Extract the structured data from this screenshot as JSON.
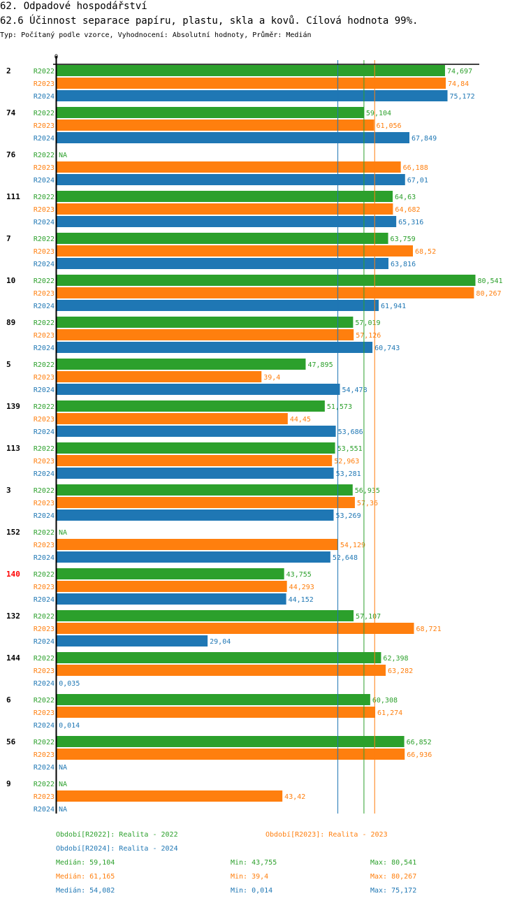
{
  "header": {
    "title": "62. Odpadové hospodářství",
    "subtitle": "62.6 Účinnost separace papíru, plastu, skla a kovů. Cílová hodnota 99%.",
    "meta": "Typ: Počítaný podle vzorce, Vyhodnocení: Absolutní hodnoty, Průměr: Medián"
  },
  "colors": {
    "R2022": "#2ca02c",
    "R2023": "#ff7f0e",
    "R2024": "#1f77b4",
    "highlight": "#ff0000",
    "axis": "#000000"
  },
  "chart_data": {
    "type": "bar",
    "orientation": "horizontal",
    "title": "62.6 Účinnost separace papíru, plastu, skla a kovů. Cílová hodnota 99%.",
    "xlabel": "",
    "ylabel": "",
    "xlim": [
      0,
      81
    ],
    "x_tick_labels": [
      "0"
    ],
    "grid": false,
    "series_names": [
      "R2022",
      "R2023",
      "R2024"
    ],
    "na_label": "NA",
    "categories": [
      "2",
      "74",
      "76",
      "111",
      "7",
      "10",
      "89",
      "5",
      "139",
      "113",
      "3",
      "152",
      "140",
      "132",
      "144",
      "6",
      "56",
      "9"
    ],
    "highlighted_category": "140",
    "series": [
      {
        "name": "R2022",
        "values": [
          74.697,
          59.104,
          null,
          64.63,
          63.759,
          80.541,
          57.019,
          47.895,
          51.573,
          53.551,
          56.935,
          null,
          43.755,
          57.107,
          62.398,
          60.308,
          66.852,
          null
        ],
        "labels": [
          "74,697",
          "59,104",
          "NA",
          "64,63",
          "63,759",
          "80,541",
          "57,019",
          "47,895",
          "51,573",
          "53,551",
          "56,935",
          "NA",
          "43,755",
          "57,107",
          "62,398",
          "60,308",
          "66,852",
          "NA"
        ]
      },
      {
        "name": "R2023",
        "values": [
          74.84,
          61.056,
          66.188,
          64.682,
          68.52,
          80.267,
          57.126,
          39.4,
          44.45,
          52.963,
          57.36,
          54.129,
          44.293,
          68.721,
          63.282,
          61.274,
          66.936,
          43.42
        ],
        "labels": [
          "74,84",
          "61,056",
          "66,188",
          "64,682",
          "68,52",
          "80,267",
          "57,126",
          "39,4",
          "44,45",
          "52,963",
          "57,36",
          "54,129",
          "44,293",
          "68,721",
          "63,282",
          "61,274",
          "66,936",
          "43,42"
        ]
      },
      {
        "name": "R2024",
        "values": [
          75.172,
          67.849,
          67.01,
          65.316,
          63.816,
          61.941,
          60.743,
          54.478,
          53.686,
          53.281,
          53.269,
          52.648,
          44.152,
          29.04,
          0.035,
          0.014,
          null,
          null
        ],
        "labels": [
          "75,172",
          "67,849",
          "67,01",
          "65,316",
          "63,816",
          "61,941",
          "60,743",
          "54,478",
          "53,686",
          "53,281",
          "53,269",
          "52,648",
          "44,152",
          "29,04",
          "0,035",
          "0,014",
          "NA",
          "NA"
        ]
      }
    ],
    "reference_lines": [
      {
        "series": "R2024",
        "type": "median",
        "value": 54.082
      },
      {
        "series": "R2022",
        "type": "median",
        "value": 59.104
      },
      {
        "series": "R2023",
        "type": "median",
        "value": 61.165
      }
    ]
  },
  "legend": {
    "periods": [
      {
        "series": "R2022",
        "text": "Období[R2022]: Realita - 2022"
      },
      {
        "series": "R2023",
        "text": "Období[R2023]: Realita - 2023"
      },
      {
        "series": "R2024",
        "text": "Období[R2024]: Realita - 2024"
      }
    ],
    "stats": [
      {
        "series": "R2022",
        "median": "Medián: 59,104",
        "min": "Min: 43,755",
        "max": "Max: 80,541"
      },
      {
        "series": "R2023",
        "median": "Medián: 61,165",
        "min": "Min: 39,4",
        "max": "Max: 80,267"
      },
      {
        "series": "R2024",
        "median": "Medián: 54,082",
        "min": "Min: 0,014",
        "max": "Max: 75,172"
      }
    ]
  }
}
